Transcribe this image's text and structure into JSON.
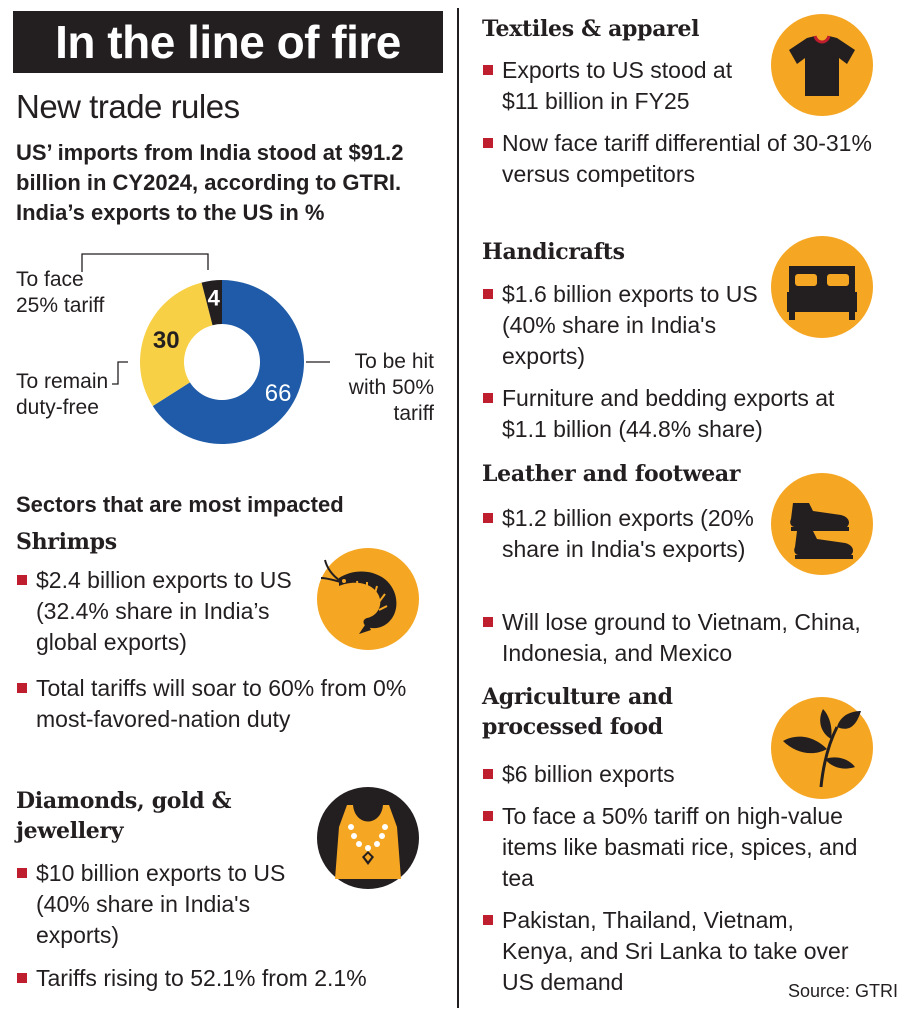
{
  "title": "In the line of fire",
  "subhead": "New trade rules",
  "intro": "US’ imports from India stood at $91.2 billion in CY2024, according to GTRI. India’s exports to the US in %",
  "chart_data": {
    "type": "pie",
    "categories": [
      "To be hit with 50% tariff",
      "To remain duty-free",
      "To face 25% tariff"
    ],
    "values": [
      66,
      30,
      4
    ],
    "value_labels": [
      "66",
      "30",
      "4"
    ],
    "label_lines": {
      "hit50": [
        "To be hit",
        "with 50%",
        "tariff"
      ],
      "dutyfree": [
        "To remain",
        "duty-free"
      ],
      "tariff25": [
        "To face",
        "25% tariff"
      ]
    },
    "colors": [
      "#1f5ba8",
      "#f7d046",
      "#231f20"
    ]
  },
  "sectors_heading": "Sectors that are most impacted",
  "left_sections": [
    {
      "heading": "Shrimps",
      "icon": "shrimp-icon",
      "bullets": [
        "$2.4 billion exports to US (32.4% share in India’s global exports)",
        "Total tariffs will soar to 60% from 0% most-favored-nation duty"
      ]
    },
    {
      "heading": "Diamonds, gold & jewellery",
      "icon": "necklace-icon",
      "bullets": [
        "$10 billion exports to US (40% share in India's exports)",
        "Tariffs rising to 52.1% from 2.1%"
      ]
    }
  ],
  "right_sections": [
    {
      "heading": "Textiles & apparel",
      "icon": "tshirt-icon",
      "bullets": [
        "Exports to US stood at $11 billion in FY25",
        "Now face tariff differential of 30-31% versus competitors"
      ]
    },
    {
      "heading": "Handicrafts",
      "icon": "bed-icon",
      "bullets": [
        "$1.6 billion exports to US (40% share in India's exports)",
        "Furniture and bedding exports at $1.1 billion (44.8% share)"
      ]
    },
    {
      "heading": "Leather and footwear",
      "icon": "shoes-icon",
      "bullets": [
        "$1.2 billion exports (20% share in India's exports)",
        "Will lose ground to Vietnam, China, Indonesia, and Mexico"
      ]
    },
    {
      "heading": "Agriculture and processed food",
      "icon": "tea-leaf-icon",
      "bullets": [
        "$6 billion exports",
        "To face a 50% tariff on high-value items like basmati rice, spices, and tea",
        "Pakistan, Thailand, Vietnam, Kenya, and Sri Lanka to take over US demand"
      ]
    }
  ],
  "source": "Source: GTRI",
  "colors": {
    "accent_orange": "#f5a623",
    "bullet_red": "#be1e2d",
    "blue": "#1f5ba8",
    "yellow": "#f7d046",
    "dark": "#231f20"
  }
}
